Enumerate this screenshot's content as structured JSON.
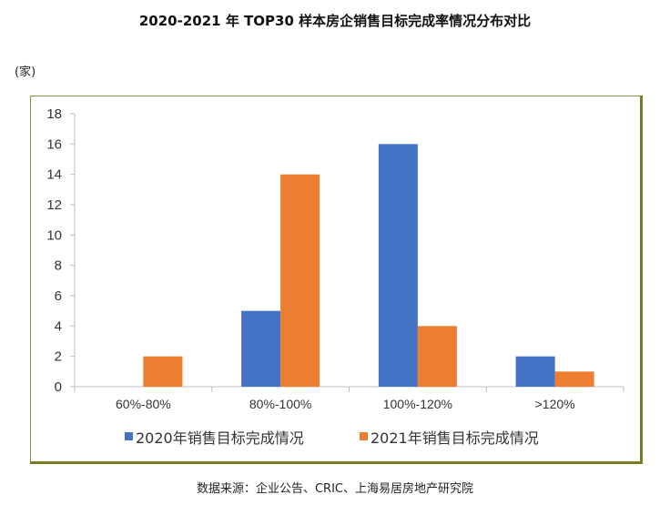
{
  "chart_data": {
    "type": "bar",
    "title": "2020-2021 年 TOP30 样本房企销售目标完成率情况分布对比",
    "ylabel": "(家)",
    "xlabel": "",
    "categories": [
      "60%-80%",
      "80%-100%",
      "100%-120%",
      ">120%"
    ],
    "series": [
      {
        "name": "2020年销售目标完成情况",
        "values": [
          0,
          5,
          16,
          2
        ],
        "color": "#4472C4"
      },
      {
        "name": "2021年销售目标完成情况",
        "values": [
          2,
          14,
          4,
          1
        ],
        "color": "#ED7D31"
      }
    ],
    "ylim": [
      0,
      18
    ],
    "yticks": [
      0,
      2,
      4,
      6,
      8,
      10,
      12,
      14,
      16,
      18
    ],
    "grid": false,
    "legend": "bottom"
  },
  "source": "数据来源：企业公告、CRIC、上海易居房地产研究院"
}
